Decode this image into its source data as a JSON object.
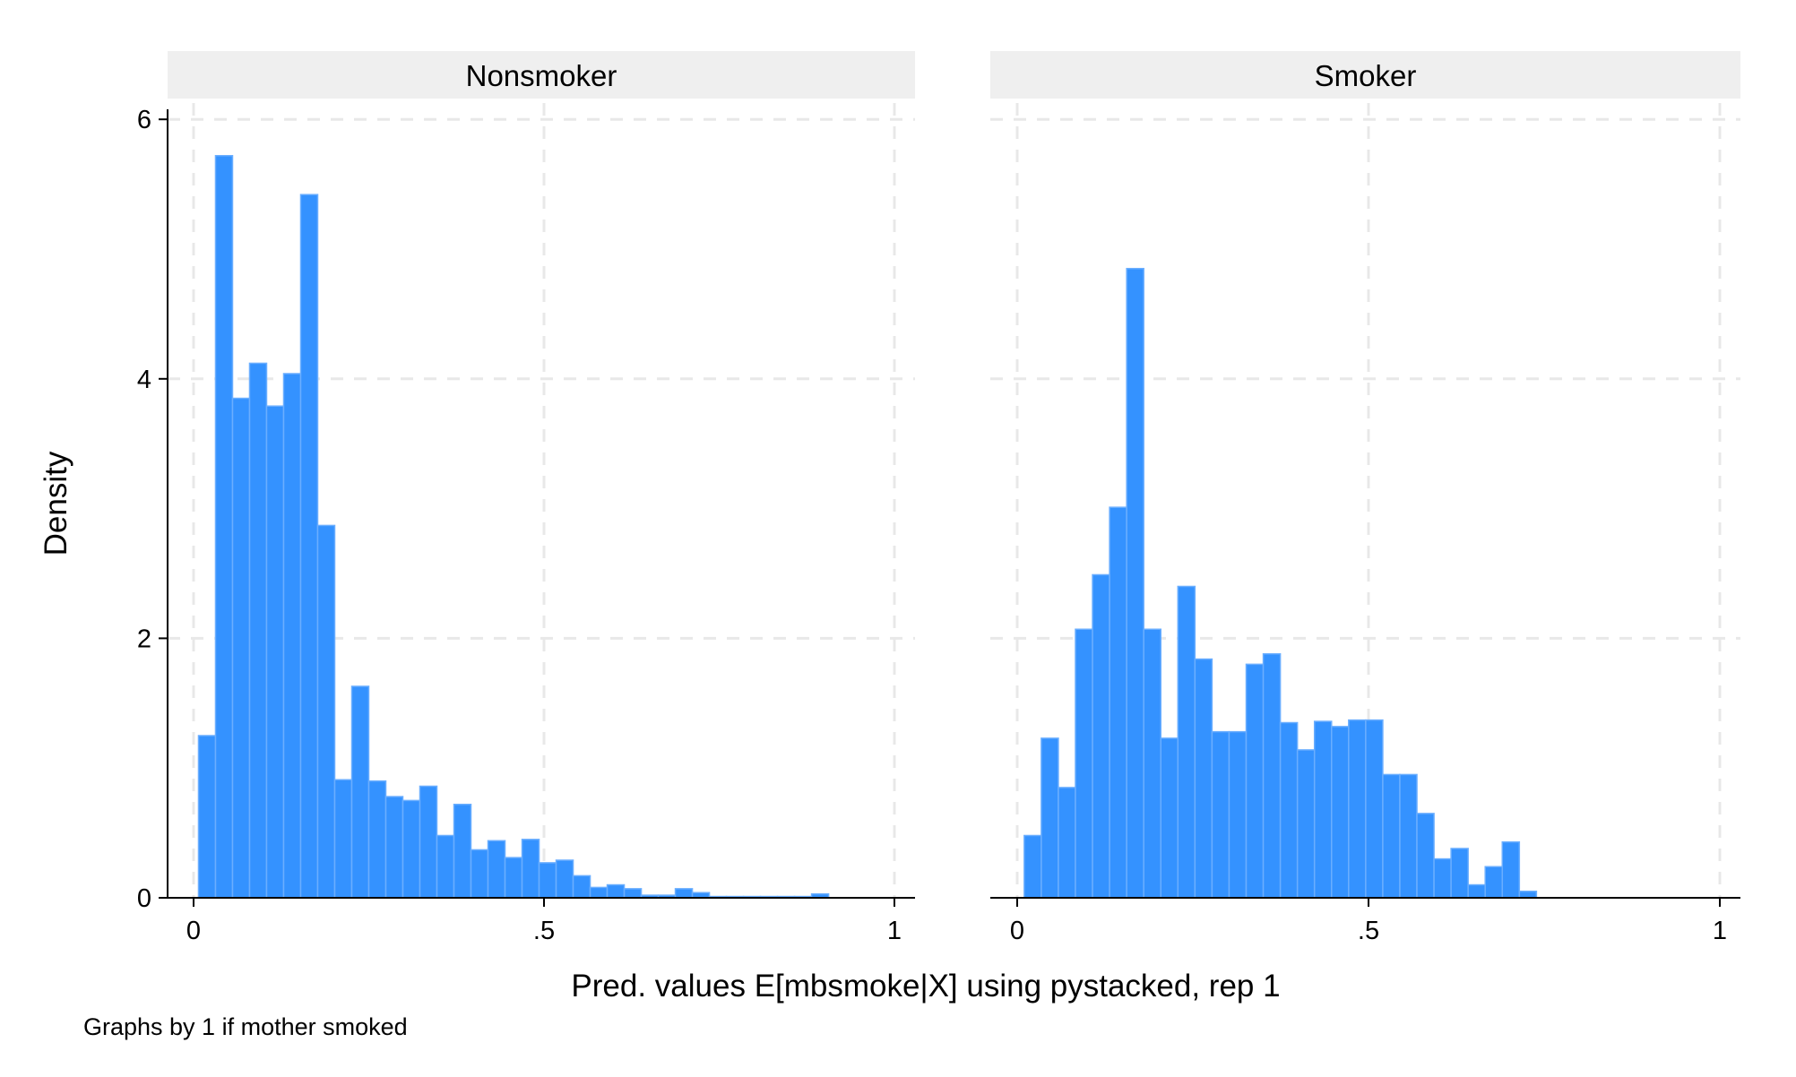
{
  "chart_data": [
    {
      "type": "bar",
      "title": "Nonsmoker",
      "xlabel": "Pred. values E[mbsmoke|X] using pystacked, rep 1",
      "ylabel": "Density",
      "xlim": [
        0,
        1
      ],
      "ylim": [
        0,
        6
      ],
      "xticks": [
        "0",
        ".5",
        "1"
      ],
      "yticks": [
        "0",
        "2",
        "4",
        "6"
      ],
      "grid": true,
      "bin_start": 0.007,
      "bin_width": 0.0243,
      "values": [
        1.25,
        5.72,
        3.85,
        4.12,
        3.79,
        4.04,
        5.42,
        2.87,
        0.91,
        1.63,
        0.9,
        0.78,
        0.75,
        0.86,
        0.48,
        0.72,
        0.37,
        0.44,
        0.31,
        0.45,
        0.27,
        0.29,
        0.17,
        0.08,
        0.1,
        0.07,
        0.02,
        0.02,
        0.07,
        0.04,
        0.01,
        0.01,
        0.01,
        0.01,
        0.01,
        0.01,
        0.03
      ]
    },
    {
      "type": "bar",
      "title": "Smoker",
      "xlim": [
        0,
        1
      ],
      "ylim": [
        0,
        6
      ],
      "xticks": [
        "0",
        ".5",
        "1"
      ],
      "grid": true,
      "bin_start": 0.01,
      "bin_width": 0.0243,
      "values": [
        0.48,
        1.23,
        0.85,
        2.07,
        2.49,
        3.01,
        4.85,
        2.07,
        1.23,
        2.4,
        1.84,
        1.28,
        1.28,
        1.8,
        1.88,
        1.35,
        1.14,
        1.36,
        1.32,
        1.37,
        1.37,
        0.95,
        0.95,
        0.65,
        0.3,
        0.38,
        0.1,
        0.24,
        0.43,
        0.05
      ]
    }
  ],
  "footnote": "Graphs by 1 if mother smoked",
  "bar_color": "#3492ff",
  "bar_edge": "#6aaeff"
}
